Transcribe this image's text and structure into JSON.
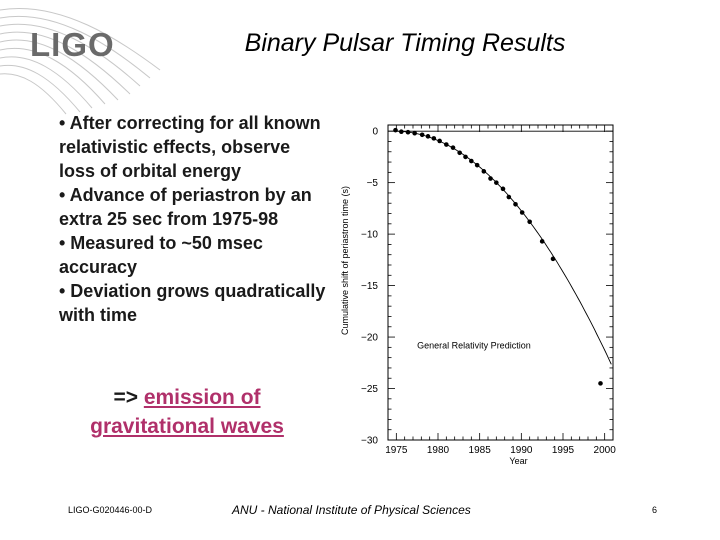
{
  "logo": {
    "text": "LIGO"
  },
  "title": "Binary Pulsar Timing Results",
  "bullets": [
    "• After correcting for all known relativistic effects, observe loss of orbital energy",
    "• Advance of periastron by an extra 25 sec from 1975-98",
    "• Measured to ~50 msec accuracy",
    "• Deviation grows quadratically with time"
  ],
  "conclusion": {
    "prefix": "=> ",
    "link_text": "emission of gravitational waves"
  },
  "footer": {
    "left": "LIGO-G020446-00-D",
    "center": "ANU - National Institute of Physical Sciences",
    "page_number": "6"
  },
  "colors": {
    "link": "#b0306a",
    "swirl": "#c8c8c8",
    "ink": "#000000"
  },
  "chart_data": {
    "type": "scatter",
    "ylabel": "Cumulative shift of periastron time (s)",
    "xlabel": "Year",
    "x_ticks": [
      1975,
      1980,
      1985,
      1990,
      1995,
      2000
    ],
    "y_ticks": [
      0,
      -5,
      -10,
      -15,
      -20,
      -25,
      -30
    ],
    "xlim": [
      1974,
      2001
    ],
    "ylim": [
      -30,
      0.6
    ],
    "grid": false,
    "annotation": "General Relativity Prediction",
    "curve": {
      "name": "General Relativity Prediction",
      "quadratic_coef": -0.0335,
      "origin_year": 1974.8
    },
    "points": [
      {
        "x": 1974.9,
        "y": 0.1
      },
      {
        "x": 1975.6,
        "y": -0.05
      },
      {
        "x": 1976.4,
        "y": -0.1
      },
      {
        "x": 1977.2,
        "y": -0.2
      },
      {
        "x": 1978.1,
        "y": -0.35
      },
      {
        "x": 1978.8,
        "y": -0.5
      },
      {
        "x": 1979.5,
        "y": -0.7
      },
      {
        "x": 1980.2,
        "y": -0.95
      },
      {
        "x": 1981.0,
        "y": -1.3
      },
      {
        "x": 1981.8,
        "y": -1.6
      },
      {
        "x": 1982.6,
        "y": -2.1
      },
      {
        "x": 1983.3,
        "y": -2.5
      },
      {
        "x": 1984.0,
        "y": -2.9
      },
      {
        "x": 1984.7,
        "y": -3.3
      },
      {
        "x": 1985.5,
        "y": -3.9
      },
      {
        "x": 1986.3,
        "y": -4.6
      },
      {
        "x": 1987.0,
        "y": -5.0
      },
      {
        "x": 1987.8,
        "y": -5.6
      },
      {
        "x": 1988.5,
        "y": -6.4
      },
      {
        "x": 1989.3,
        "y": -7.1
      },
      {
        "x": 1990.1,
        "y": -7.9
      },
      {
        "x": 1991.0,
        "y": -8.8
      },
      {
        "x": 1992.5,
        "y": -10.7
      },
      {
        "x": 1993.8,
        "y": -12.4
      },
      {
        "x": 1999.5,
        "y": -24.5
      }
    ]
  }
}
